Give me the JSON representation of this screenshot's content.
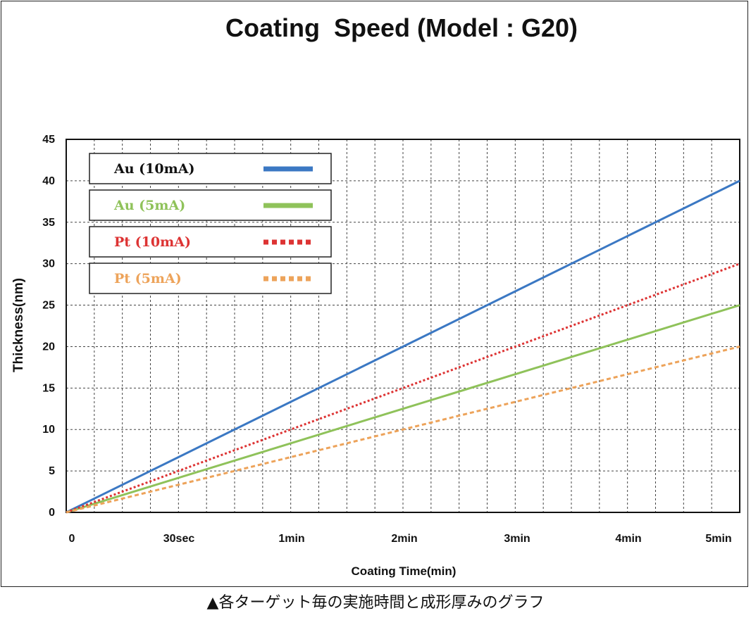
{
  "chart_data": {
    "type": "line",
    "title": "Coating  Speed (Model : G20)",
    "xlabel": "Coating Time(min)",
    "ylabel": "Thickness(nm)",
    "ylim": [
      0,
      45
    ],
    "yticks": [
      "0",
      "5",
      "10",
      "15",
      "20",
      "25",
      "30",
      "35",
      "40",
      "45"
    ],
    "xticks": [
      "0",
      "30sec",
      "1min",
      "2min",
      "3min",
      "4min",
      "5min"
    ],
    "grid": true,
    "legend_position": "top-left",
    "series": [
      {
        "name": "Au  (10mA)",
        "color": "#3b78c3",
        "style": "solid",
        "x": [
          "0",
          "5min"
        ],
        "y": [
          0,
          40
        ]
      },
      {
        "name": "Au  (5mA)",
        "color": "#8fc25a",
        "style": "solid",
        "x": [
          "0",
          "5min"
        ],
        "y": [
          0,
          25
        ]
      },
      {
        "name": "Pt  (10mA)",
        "color": "#dd3333",
        "style": "dotted",
        "x": [
          "0",
          "5min"
        ],
        "y": [
          0,
          30
        ]
      },
      {
        "name": "Pt  (5mA)",
        "color": "#eda35a",
        "style": "dashed",
        "x": [
          "0",
          "5min"
        ],
        "y": [
          0,
          20
        ]
      }
    ]
  },
  "caption": "▲各ターゲット毎の実施時間と成形厚みのグラフ"
}
